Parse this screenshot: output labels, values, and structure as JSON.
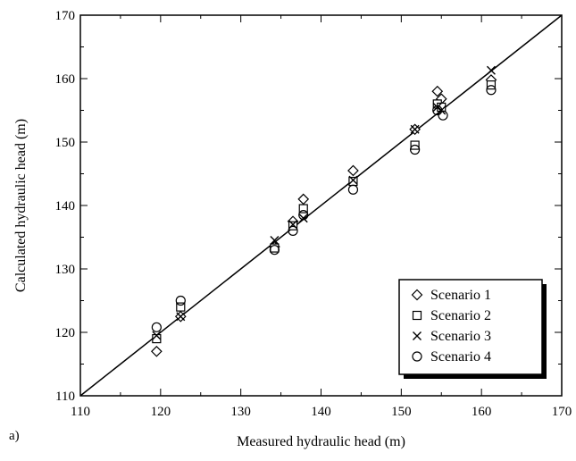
{
  "panel_label": "a)",
  "chart_data": {
    "type": "scatter",
    "xlabel": "Measured hydraulic head (m)",
    "ylabel": "Calculated hydraulic head (m)",
    "xlim": [
      110,
      170
    ],
    "ylim": [
      110,
      170
    ],
    "xticks": [
      110,
      120,
      130,
      140,
      150,
      160,
      170
    ],
    "yticks": [
      110,
      120,
      130,
      140,
      150,
      160,
      170
    ],
    "reference_line": {
      "x": [
        110,
        170
      ],
      "y": [
        110,
        170
      ]
    },
    "legend_position": "bottom-right",
    "series": [
      {
        "name": "Scenario 1",
        "marker": "diamond",
        "x": [
          119.5,
          122.5,
          134.2,
          136.5,
          137.8,
          144.0,
          151.7,
          154.5,
          155.0,
          161.2
        ],
        "y": [
          117.0,
          122.5,
          133.5,
          137.5,
          141.0,
          145.5,
          152.0,
          158.0,
          156.8,
          159.8
        ]
      },
      {
        "name": "Scenario 2",
        "marker": "square",
        "x": [
          119.5,
          122.5,
          134.2,
          136.5,
          137.8,
          144.0,
          151.7,
          154.5,
          155.0,
          161.2
        ],
        "y": [
          119.0,
          124.0,
          133.3,
          136.8,
          139.5,
          143.8,
          149.5,
          156.0,
          155.5,
          159.0
        ]
      },
      {
        "name": "Scenario 3",
        "marker": "x",
        "x": [
          119.5,
          122.5,
          134.2,
          136.5,
          137.8,
          144.0,
          151.7,
          154.5,
          155.0,
          161.2
        ],
        "y": [
          119.5,
          122.5,
          134.5,
          137.0,
          138.0,
          144.0,
          152.0,
          155.5,
          155.0,
          161.3
        ]
      },
      {
        "name": "Scenario 4",
        "marker": "circle",
        "x": [
          119.5,
          122.5,
          134.2,
          136.5,
          137.8,
          144.0,
          151.7,
          154.5,
          155.2,
          161.2
        ],
        "y": [
          120.8,
          125.0,
          133.0,
          136.0,
          138.5,
          142.5,
          148.8,
          155.0,
          154.2,
          158.2
        ]
      }
    ]
  }
}
